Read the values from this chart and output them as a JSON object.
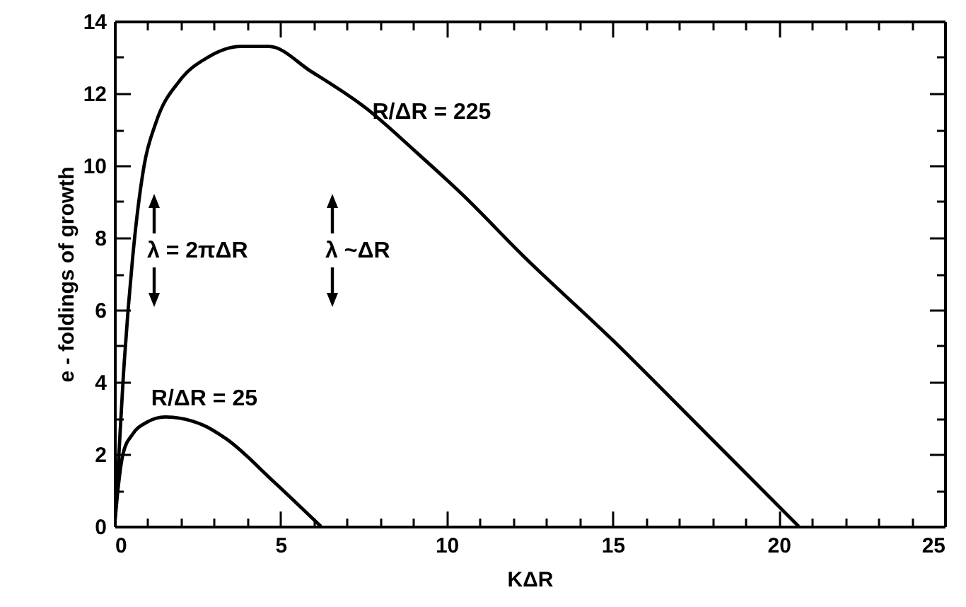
{
  "chart_data": {
    "type": "line",
    "xlabel": "KΔR",
    "ylabel": "e - foldings of growth",
    "xlim": [
      0,
      25
    ],
    "ylim": [
      0,
      14
    ],
    "xticks": [
      0,
      {
        "value": 1,
        "label": null
      },
      {
        "value": 2,
        "label": null
      },
      {
        "value": 3,
        "label": null
      },
      {
        "value": 4,
        "label": null
      },
      5,
      {
        "value": 6,
        "label": null
      },
      {
        "value": 7,
        "label": null
      },
      {
        "value": 8,
        "label": null
      },
      {
        "value": 9,
        "label": null
      },
      10,
      {
        "value": 11,
        "label": null
      },
      {
        "value": 12,
        "label": null
      },
      {
        "value": 13,
        "label": null
      },
      {
        "value": 14,
        "label": null
      },
      15,
      {
        "value": 16,
        "label": null
      },
      {
        "value": 17,
        "label": null
      },
      {
        "value": 18,
        "label": null
      },
      {
        "value": 19,
        "label": null
      },
      20,
      {
        "value": 21,
        "label": null
      },
      {
        "value": 22,
        "label": null
      },
      {
        "value": 23,
        "label": null
      },
      {
        "value": 24,
        "label": null
      },
      25
    ],
    "yticks": [
      0,
      {
        "value": 1,
        "label": null
      },
      2,
      {
        "value": 3,
        "label": null
      },
      4,
      {
        "value": 5,
        "label": null
      },
      6,
      {
        "value": 7,
        "label": null
      },
      8,
      {
        "value": 9,
        "label": null
      },
      10,
      {
        "value": 11,
        "label": null
      },
      12,
      {
        "value": 13,
        "label": null
      },
      14
    ],
    "grid": false,
    "marker": "none",
    "line_style": "solid",
    "series": [
      {
        "name": "R/ΔR = 225",
        "color": "#000000",
        "x": [
          0,
          0.1,
          0.26,
          0.54,
          0.89,
          1.25,
          1.96,
          2.81,
          3.8,
          4.65,
          5.93,
          7.6,
          9.05,
          10.47,
          12.3,
          15.0,
          17.84,
          20.6
        ],
        "values": [
          0,
          1.5,
          4.1,
          7.4,
          10.0,
          11.2,
          12.35,
          13.0,
          13.3,
          13.3,
          12.6,
          11.57,
          10.4,
          9.2,
          7.5,
          5.16,
          2.55,
          0
        ]
      },
      {
        "name": "R/ΔR = 25",
        "color": "#000000",
        "x": [
          0,
          0.1,
          0.26,
          0.54,
          0.96,
          1.53,
          2.66,
          3.37,
          4.79,
          6.21
        ],
        "values": [
          0,
          1.0,
          2.03,
          2.55,
          2.88,
          3.03,
          2.81,
          2.42,
          1.24,
          0
        ]
      }
    ],
    "annotations": [
      "λ = 2πΔR",
      "λ ~ΔR"
    ]
  }
}
